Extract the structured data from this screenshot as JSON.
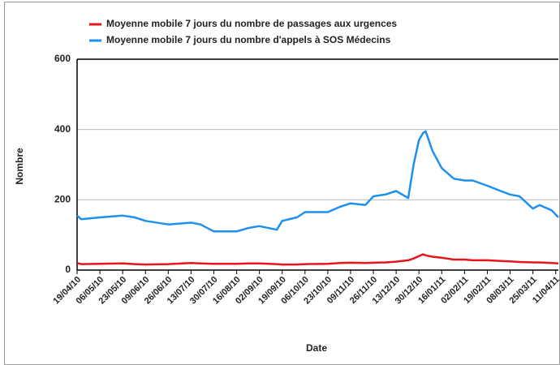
{
  "chart_data": {
    "type": "line",
    "x_label": "Date",
    "y_label": "Nombre",
    "x": [
      "2010-04-19",
      "2010-04-22",
      "2010-05-06",
      "2010-05-23",
      "2010-06-01",
      "2010-06-09",
      "2010-06-26",
      "2010-07-13",
      "2010-07-20",
      "2010-07-30",
      "2010-08-16",
      "2010-08-25",
      "2010-09-02",
      "2010-09-15",
      "2010-09-19",
      "2010-09-30",
      "2010-10-06",
      "2010-10-23",
      "2010-11-01",
      "2010-11-09",
      "2010-11-20",
      "2010-11-26",
      "2010-12-05",
      "2010-12-13",
      "2010-12-22",
      "2010-12-26",
      "2010-12-30",
      "2011-01-02",
      "2011-01-04",
      "2011-01-09",
      "2011-01-16",
      "2011-01-25",
      "2011-02-02",
      "2011-02-08",
      "2011-02-19",
      "2011-03-01",
      "2011-03-08",
      "2011-03-15",
      "2011-03-25",
      "2011-03-30",
      "2011-04-08",
      "2011-04-13"
    ],
    "series": [
      {
        "name": "Moyenne mobile 7 jours du nombre de passages aux urgences",
        "color": "#e8141b",
        "values": [
          20,
          17,
          18,
          19,
          17,
          16,
          17,
          20,
          19,
          18,
          18,
          19,
          19,
          17,
          16,
          16,
          17,
          18,
          20,
          21,
          20,
          21,
          22,
          24,
          28,
          33,
          40,
          45,
          42,
          38,
          35,
          30,
          30,
          28,
          28,
          26,
          25,
          23,
          22,
          22,
          20,
          19
        ]
      },
      {
        "name": "Moyenne mobile 7 jours du nombre d'appels à SOS Médecins",
        "color": "#1e90f0",
        "values": [
          155,
          145,
          150,
          155,
          150,
          140,
          130,
          135,
          130,
          110,
          110,
          120,
          125,
          115,
          140,
          150,
          165,
          165,
          180,
          190,
          185,
          210,
          215,
          225,
          205,
          300,
          370,
          390,
          395,
          340,
          290,
          260,
          255,
          255,
          240,
          225,
          215,
          210,
          175,
          185,
          170,
          150
        ]
      }
    ],
    "xlim": [
      "2010-04-19",
      "2011-04-13"
    ],
    "xticks": [
      {
        "value": "2010-04-19",
        "label": "19/04/10"
      },
      {
        "value": "2010-05-06",
        "label": "06/05/10"
      },
      {
        "value": "2010-05-23",
        "label": "23/05/10"
      },
      {
        "value": "2010-06-09",
        "label": "09/06/10"
      },
      {
        "value": "2010-06-26",
        "label": "26/06/10"
      },
      {
        "value": "2010-07-13",
        "label": "13/07/10"
      },
      {
        "value": "2010-07-30",
        "label": "30/07/10"
      },
      {
        "value": "2010-08-16",
        "label": "16/08/10"
      },
      {
        "value": "2010-09-02",
        "label": "02/09/10"
      },
      {
        "value": "2010-09-19",
        "label": "19/09/10"
      },
      {
        "value": "2010-10-06",
        "label": "06/10/10"
      },
      {
        "value": "2010-10-23",
        "label": "23/10/10"
      },
      {
        "value": "2010-11-09",
        "label": "09/11/10"
      },
      {
        "value": "2010-11-26",
        "label": "26/11/10"
      },
      {
        "value": "2010-12-13",
        "label": "13/12/10"
      },
      {
        "value": "2010-12-30",
        "label": "30/12/10"
      },
      {
        "value": "2011-01-16",
        "label": "16/01/11"
      },
      {
        "value": "2011-02-02",
        "label": "02/02/11"
      },
      {
        "value": "2011-02-19",
        "label": "19/02/11"
      },
      {
        "value": "2011-03-08",
        "label": "08/03/11"
      },
      {
        "value": "2011-03-25",
        "label": "25/03/11"
      },
      {
        "value": "2011-04-11",
        "label": "11/04/11"
      }
    ],
    "ylim": [
      0,
      600
    ],
    "yticks": [
      0,
      200,
      400,
      600
    ],
    "grid": true
  }
}
